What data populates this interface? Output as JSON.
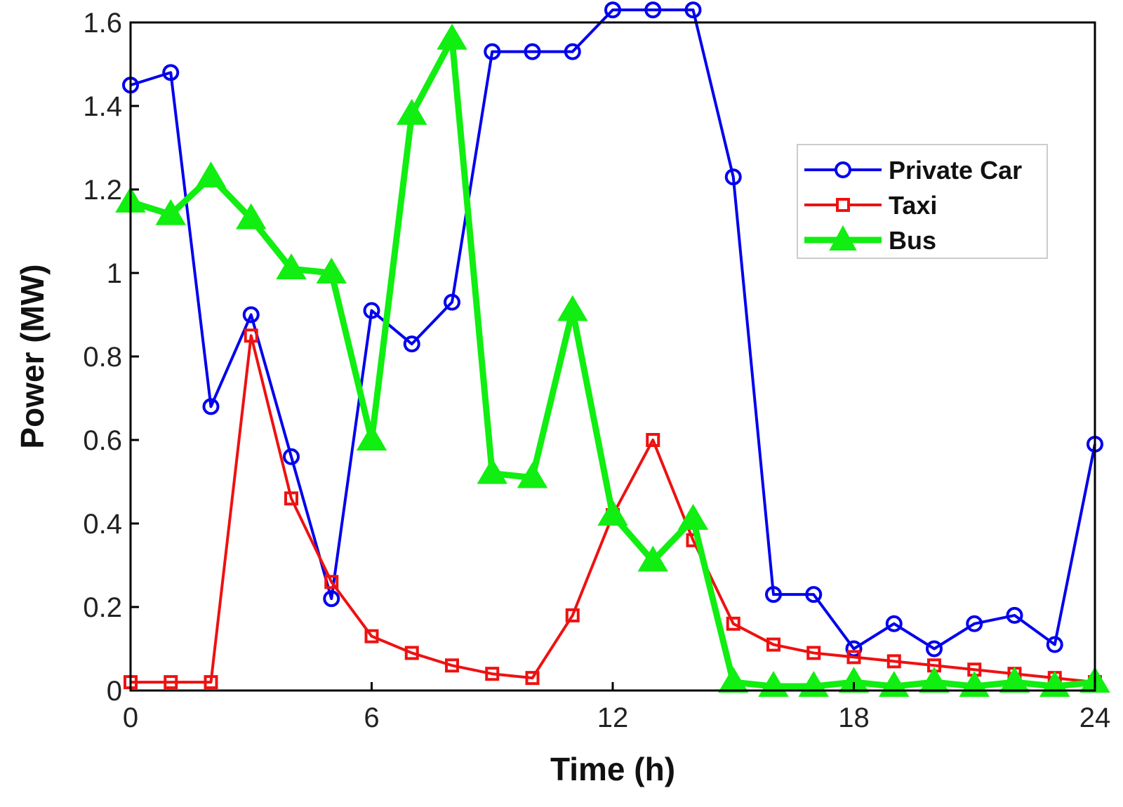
{
  "chart_data": {
    "type": "line",
    "title": "",
    "xlabel": "Time (h)",
    "ylabel": "Power (MW)",
    "xlim": [
      0,
      24
    ],
    "ylim": [
      0,
      1.6
    ],
    "xticks": [
      0,
      6,
      12,
      18,
      24
    ],
    "xtick_labels": [
      "0",
      "6",
      "12",
      "18",
      "24"
    ],
    "yticks": [
      0,
      0.2,
      0.4,
      0.6,
      0.8,
      1.0,
      1.2,
      1.4,
      1.6
    ],
    "ytick_labels": [
      "0",
      "0.2",
      "0.4",
      "0.6",
      "0.8",
      "1",
      "1.2",
      "1.4",
      "1.6"
    ],
    "grid": false,
    "legend_position": "upper-right",
    "x": [
      0,
      1,
      2,
      3,
      4,
      5,
      6,
      7,
      8,
      9,
      10,
      11,
      12,
      13,
      14,
      15,
      16,
      17,
      18,
      19,
      20,
      21,
      22,
      23,
      24
    ],
    "series": [
      {
        "name": "Private Car",
        "color": "#0000ee",
        "marker": "circle",
        "values": [
          1.45,
          1.48,
          0.68,
          0.9,
          0.56,
          0.22,
          0.91,
          0.83,
          0.93,
          1.53,
          1.53,
          1.53,
          1.63,
          1.63,
          1.63,
          1.23,
          0.23,
          0.23,
          0.1,
          0.16,
          0.1,
          0.16,
          0.18,
          0.11,
          0.59
        ]
      },
      {
        "name": "Taxi",
        "color": "#ee1111",
        "marker": "square",
        "values": [
          0.02,
          0.02,
          0.02,
          0.85,
          0.46,
          0.26,
          0.13,
          0.09,
          0.06,
          0.04,
          0.03,
          0.18,
          0.42,
          0.6,
          0.36,
          0.16,
          0.11,
          0.09,
          0.08,
          0.07,
          0.06,
          0.05,
          0.04,
          0.03,
          0.02
        ]
      },
      {
        "name": "Bus",
        "color": "#11ee11",
        "marker": "triangle",
        "values": [
          1.17,
          1.14,
          1.23,
          1.13,
          1.01,
          1.0,
          0.6,
          1.38,
          1.56,
          0.52,
          0.51,
          0.91,
          0.42,
          0.31,
          0.41,
          0.02,
          0.01,
          0.01,
          0.02,
          0.01,
          0.02,
          0.01,
          0.02,
          0.01,
          0.02
        ]
      }
    ]
  }
}
